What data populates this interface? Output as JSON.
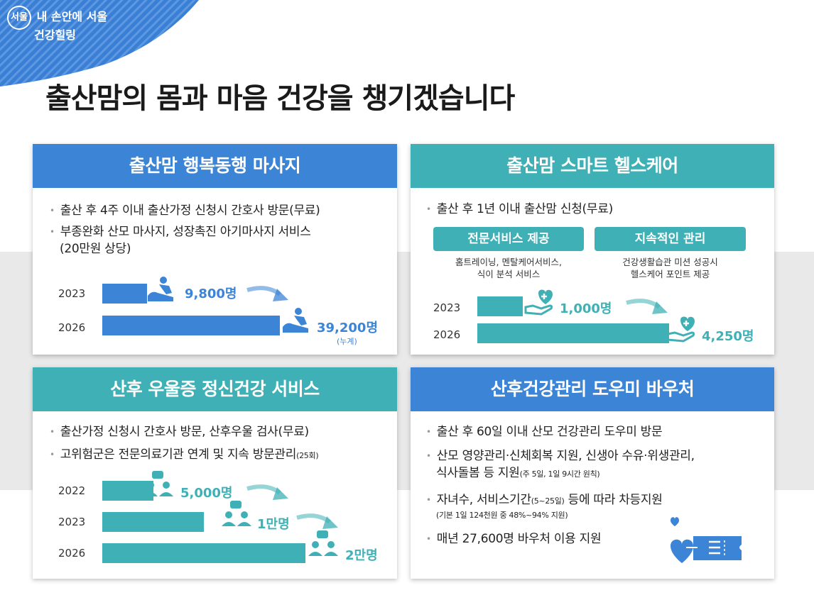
{
  "brand": {
    "logo": "서울",
    "line1": "내 손안에 서울",
    "line2": "건강힐링"
  },
  "title": "출산맘의 몸과 마음 건강을 챙기겠습니다",
  "colors": {
    "blue": "#3b84d6",
    "teal": "#3fb0b5",
    "band": "#e9e9ea"
  },
  "card1": {
    "title": "출산맘 행복동행 마사지",
    "bullets": [
      "출산 후 4주 이내 출산가정 신청시 간호사 방문(무료)",
      "부종완화 산모 마사지, 성장촉진 아기마사지 서비스",
      "(20만원 상당)"
    ],
    "chart": [
      {
        "year": "2023",
        "value": "9,800명",
        "count": 9800
      },
      {
        "year": "2026",
        "value": "39,200명",
        "count": 39200
      }
    ],
    "note": "(누계)"
  },
  "card2": {
    "title": "출산맘 스마트 헬스케어",
    "bullet": "출산 후 1년 이내 출산맘 신청(무료)",
    "pills": [
      {
        "label": "전문서비스 제공",
        "desc1": "홈트레이닝, 멘탈케어서비스,",
        "desc2": "식이 분석 서비스"
      },
      {
        "label": "지속적인 관리",
        "desc1": "건강생활습관 미션 성공시",
        "desc2": "헬스케어 포인트 제공"
      }
    ],
    "chart": [
      {
        "year": "2023",
        "value": "1,000명",
        "count": 1000
      },
      {
        "year": "2026",
        "value": "4,250명",
        "count": 4250
      }
    ]
  },
  "card3": {
    "title": "산후 우울증 정신건강 서비스",
    "bullets": [
      "출산가정 신청시 간호사 방문, 산후우울 검사(무료)",
      "고위험군은 전문의료기관 연계  및 지속 방문관리"
    ],
    "bullet2_small": "(25회)",
    "chart": [
      {
        "year": "2022",
        "value": "5,000명",
        "count": 5000
      },
      {
        "year": "2023",
        "value": "1만명",
        "count": 10000
      },
      {
        "year": "2026",
        "value": "2만명",
        "count": 20000
      }
    ]
  },
  "card4": {
    "title": "산후건강관리 도우미 바우처",
    "b1": "출산 후 60일 이내 산모 건강관리 도우미 방문",
    "b2a": "산모 영양관리·신체회복 지원, 신생아 수유·위생관리,",
    "b2b": "식사돌봄 등 지원",
    "b2b_small": "(주 5일, 1일 9시간 원칙)",
    "b3": "자녀수, 서비스기간",
    "b3_small": "(5~25일)",
    "b3_end": " 등에 따라 차등지원",
    "b3_note": "(기본 1일 124천원 중 48%~94% 지원)",
    "b4": "매년 27,600명 바우처 이용 지원"
  }
}
